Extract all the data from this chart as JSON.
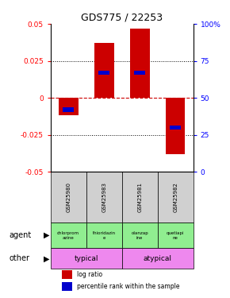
{
  "title": "GDS775 / 22253",
  "samples": [
    "GSM25980",
    "GSM25983",
    "GSM25981",
    "GSM25982"
  ],
  "log_ratios": [
    -0.012,
    0.037,
    0.047,
    -0.038
  ],
  "percentile_ranks": [
    42,
    67,
    67,
    30
  ],
  "ylim": [
    -0.05,
    0.05
  ],
  "yticks_left": [
    -0.05,
    -0.025,
    0,
    0.025,
    0.05
  ],
  "yticks_right": [
    0,
    25,
    50,
    75,
    100
  ],
  "bar_color": "#cc0000",
  "percentile_color": "#0000cc",
  "zero_line_color": "#cc0000",
  "grid_color": "black",
  "agent_labels": [
    "chlorprom\nazine",
    "thioridazin\ne",
    "olanzap\nine",
    "quetiapi\nne"
  ],
  "agent_color": "#90ee90",
  "other_color": "#ee88ee",
  "sample_bg_color": "#d0d0d0",
  "bar_width": 0.55,
  "legend_items": [
    {
      "label": "log ratio",
      "color": "#cc0000"
    },
    {
      "label": "percentile rank within the sample",
      "color": "#0000cc"
    }
  ]
}
